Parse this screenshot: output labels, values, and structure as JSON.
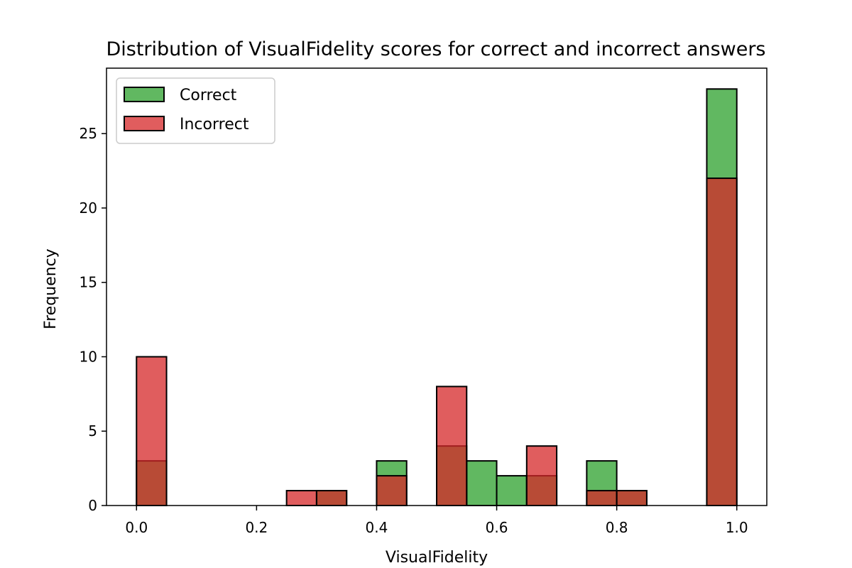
{
  "chart_data": {
    "type": "bar",
    "title": "Distribution of VisualFidelity scores for correct and incorrect answers",
    "xlabel": "VisualFidelity",
    "ylabel": "Frequency",
    "xlim": [
      -0.05,
      1.05
    ],
    "ylim": [
      0,
      29.4
    ],
    "xticks": [
      0.0,
      0.2,
      0.4,
      0.6,
      0.8,
      1.0
    ],
    "xtick_labels": [
      "0.0",
      "0.2",
      "0.4",
      "0.6",
      "0.8",
      "1.0"
    ],
    "yticks": [
      0,
      5,
      10,
      15,
      20,
      25
    ],
    "ytick_labels": [
      "0",
      "5",
      "10",
      "15",
      "20",
      "25"
    ],
    "bin_width": 0.05,
    "bin_starts": [
      0.0,
      0.05,
      0.1,
      0.15,
      0.2,
      0.25,
      0.3,
      0.35,
      0.4,
      0.45,
      0.5,
      0.55,
      0.6,
      0.65,
      0.7,
      0.75,
      0.8,
      0.85,
      0.9,
      0.95
    ],
    "legend_position": "top-left",
    "series": [
      {
        "name": "Correct",
        "color": "#2ca02c",
        "values": [
          3,
          0,
          0,
          0,
          0,
          0,
          1,
          0,
          3,
          0,
          4,
          3,
          2,
          2,
          0,
          3,
          1,
          0,
          0,
          28
        ]
      },
      {
        "name": "Incorrect",
        "color": "#d62728",
        "values": [
          10,
          0,
          0,
          0,
          0,
          1,
          1,
          0,
          2,
          0,
          8,
          0,
          0,
          4,
          0,
          1,
          1,
          0,
          0,
          22
        ]
      }
    ]
  }
}
